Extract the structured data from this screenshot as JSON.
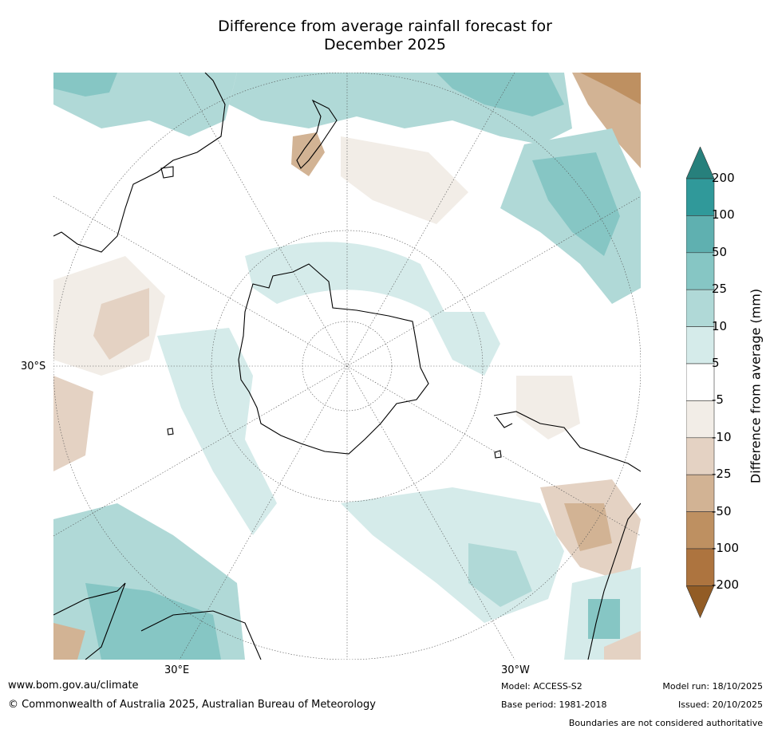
{
  "title": {
    "line1": "Difference from average rainfall forecast for",
    "line2": "December 2025"
  },
  "map": {
    "projection": "south polar stereographic",
    "lat_label": "30°S",
    "lon_labels": [
      "30°E",
      "30°W"
    ]
  },
  "colorbar": {
    "title": "Difference from average (mm)",
    "extend": "both",
    "ticks": [
      "200",
      "100",
      "50",
      "25",
      "10",
      "5",
      "-5",
      "-10",
      "-25",
      "-50",
      "-100",
      "-200"
    ],
    "colors": {
      "above_200": "#27807c",
      "c_100_200": "#30999a",
      "c_50_100": "#5fb0b0",
      "c_25_50": "#86c6c4",
      "c_10_25": "#b0d9d7",
      "c_5_10": "#d5ebea",
      "c_m5_5": "#ffffff",
      "c_m10_m5": "#f2ede7",
      "c_m25_m10": "#e4d2c3",
      "c_m50_m25": "#d2b394",
      "c_m100_m50": "#be9061",
      "c_m200_m100": "#ad743f",
      "below_m200": "#925c25"
    }
  },
  "footer": {
    "website": "www.bom.gov.au/climate",
    "copyright": "© Commonwealth of Australia 2025, Australian Bureau of Meteorology",
    "model": "Model: ACCESS-S2",
    "base_period": "Base period: 1981-2018",
    "model_run": "Model run: 18/10/2025",
    "issued": "Issued: 20/10/2025",
    "boundaries": "Boundaries are not considered authoritative"
  }
}
